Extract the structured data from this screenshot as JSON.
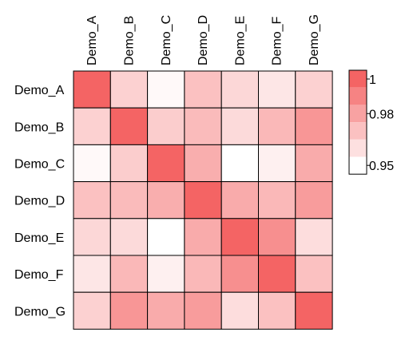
{
  "chart_data": {
    "type": "heatmap",
    "title": "",
    "row_labels": [
      "Demo_A",
      "Demo_B",
      "Demo_C",
      "Demo_D",
      "Demo_E",
      "Demo_F",
      "Demo_G"
    ],
    "col_labels": [
      "Demo_A",
      "Demo_B",
      "Demo_C",
      "Demo_D",
      "Demo_E",
      "Demo_F",
      "Demo_G"
    ],
    "values": [
      [
        1.0,
        0.965,
        0.952,
        0.97,
        0.963,
        0.958,
        0.965
      ],
      [
        0.965,
        1.0,
        0.966,
        0.972,
        0.962,
        0.973,
        0.984
      ],
      [
        0.952,
        0.966,
        1.0,
        0.976,
        0.949,
        0.955,
        0.977
      ],
      [
        0.97,
        0.972,
        0.976,
        1.0,
        0.977,
        0.973,
        0.982
      ],
      [
        0.963,
        0.962,
        0.949,
        0.977,
        1.0,
        0.986,
        0.961
      ],
      [
        0.958,
        0.973,
        0.955,
        0.973,
        0.986,
        1.0,
        0.97
      ],
      [
        0.965,
        0.984,
        0.977,
        0.982,
        0.961,
        0.97,
        1.0
      ]
    ],
    "color_scale": {
      "min": 0.95,
      "max": 1.0,
      "low_color": "#ffffff",
      "high_color": "#f46464",
      "ticks": [
        "1",
        "0.98",
        "0.95"
      ],
      "tick_values": [
        1.0,
        0.98,
        0.95
      ],
      "legend_bands": [
        1.0,
        0.99,
        0.98,
        0.97,
        0.96,
        0.95
      ]
    },
    "grid": true,
    "legend_position": "right"
  }
}
